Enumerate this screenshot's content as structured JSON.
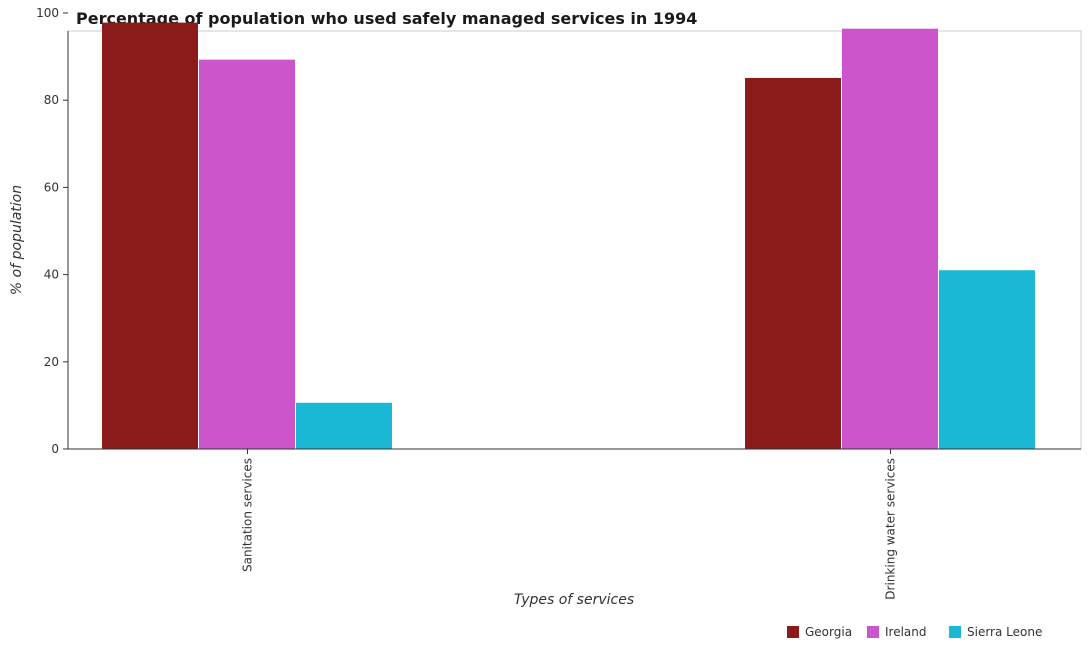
{
  "chart_data": {
    "type": "bar",
    "title": "Percentage of population who used safely managed services in 1994",
    "xlabel": "Types of services",
    "ylabel": "% of population",
    "categories": [
      "Sanitation services",
      "Drinking water services"
    ],
    "series": [
      {
        "name": "Georgia",
        "color": "#8b1a1a",
        "values": [
          97.8,
          85.1
        ]
      },
      {
        "name": "Ireland",
        "color": "#cc55cc",
        "values": [
          89.3,
          96.4
        ]
      },
      {
        "name": "Sierra Leone",
        "color": "#1ab8d4",
        "values": [
          10.6,
          41.0
        ]
      }
    ],
    "ylim": [
      0,
      100
    ],
    "yticks": [
      0,
      20,
      40,
      60,
      80,
      100
    ],
    "grid": false,
    "legend_position": "bottom-right"
  }
}
